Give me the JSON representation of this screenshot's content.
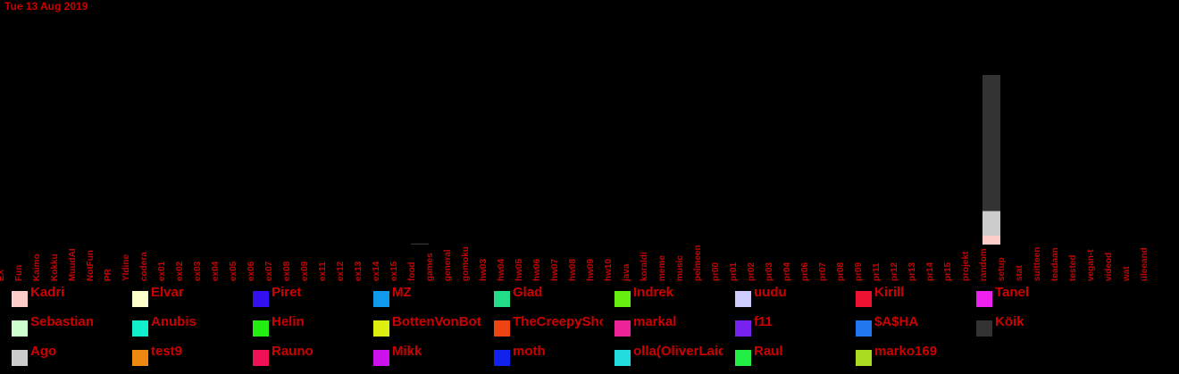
{
  "date": "Tue 13 Aug 2019",
  "text_color": "#cc0000",
  "chart_data": {
    "type": "bar",
    "stacked": true,
    "title": "",
    "xlabel": "",
    "ylabel": "",
    "grid": false,
    "legend_position": "bottom",
    "categories": [
      "EX",
      "Fun",
      "Kaimo",
      "Kokku",
      "MuudAI",
      "NotFun",
      "PR",
      "Yldine",
      "codera",
      "ex01",
      "ex02",
      "ex03",
      "ex04",
      "ex05",
      "ex06",
      "ex07",
      "ex08",
      "ex09",
      "ex11",
      "ex12",
      "ex13",
      "ex14",
      "ex15",
      "food",
      "games",
      "general",
      "gomoku",
      "hw03",
      "hw04",
      "hw05",
      "hw06",
      "hw07",
      "hw08",
      "hw09",
      "hw10",
      "java",
      "koraldi",
      "meme",
      "music",
      "pelmeen",
      "pr00",
      "pr01",
      "pr02",
      "pr03",
      "pr04",
      "pr06",
      "pr07",
      "pr08",
      "pr09",
      "pr11",
      "pr12",
      "pr13",
      "pr14",
      "pr15",
      "projekt",
      "random",
      "setup",
      "stat",
      "suitteen",
      "teadaan",
      "tested",
      "vegan-t",
      "videod",
      "wat",
      "üleeand"
    ],
    "series": [
      {
        "name": "Kadri",
        "color": "#ffcccc",
        "values": {
          "random": 8
        }
      },
      {
        "name": "Elvar",
        "color": "#ffffcc",
        "values": {}
      },
      {
        "name": "Piret",
        "color": "#3311ee",
        "values": {}
      },
      {
        "name": "MZ",
        "color": "#1199ee",
        "values": {}
      },
      {
        "name": "Glad",
        "color": "#22dd88",
        "values": {}
      },
      {
        "name": "Indrek",
        "color": "#66ee11",
        "values": {}
      },
      {
        "name": "uudu",
        "color": "#ccccff",
        "values": {}
      },
      {
        "name": "Kirill",
        "color": "#ee1133",
        "values": {}
      },
      {
        "name": "Tanel",
        "color": "#ee22ee",
        "values": {}
      },
      {
        "name": "Sebastian",
        "color": "#ccffcc",
        "values": {}
      },
      {
        "name": "Anubis",
        "color": "#11eecc",
        "values": {}
      },
      {
        "name": "Helin",
        "color": "#22ee11",
        "values": {}
      },
      {
        "name": "BottenVonBot",
        "color": "#ddee11",
        "values": {}
      },
      {
        "name": "TheCreepySho",
        "color": "#ee4411",
        "values": {}
      },
      {
        "name": "markal",
        "color": "#ee2299",
        "values": {}
      },
      {
        "name": "f11",
        "color": "#7722ee",
        "values": {}
      },
      {
        "name": "$A$HA",
        "color": "#2277ee",
        "values": {}
      },
      {
        "name": "Köik",
        "color": "#333333",
        "values": {
          "food": 1,
          "random": 122
        }
      },
      {
        "name": "Ago",
        "color": "#cccccc",
        "values": {
          "random": 22
        }
      },
      {
        "name": "test9",
        "color": "#ee8811",
        "values": {}
      },
      {
        "name": "Rauno",
        "color": "#ee1155",
        "values": {}
      },
      {
        "name": "Mikk",
        "color": "#cc11ee",
        "values": {}
      },
      {
        "name": "moth",
        "color": "#1122ee",
        "values": {}
      },
      {
        "name": "olla(OliverLaid",
        "color": "#22dddd",
        "values": {}
      },
      {
        "name": "Raul",
        "color": "#22ee44",
        "values": {}
      },
      {
        "name": "marko169",
        "color": "#aadd22",
        "values": {}
      }
    ],
    "ylim": [
      0,
      160
    ]
  }
}
